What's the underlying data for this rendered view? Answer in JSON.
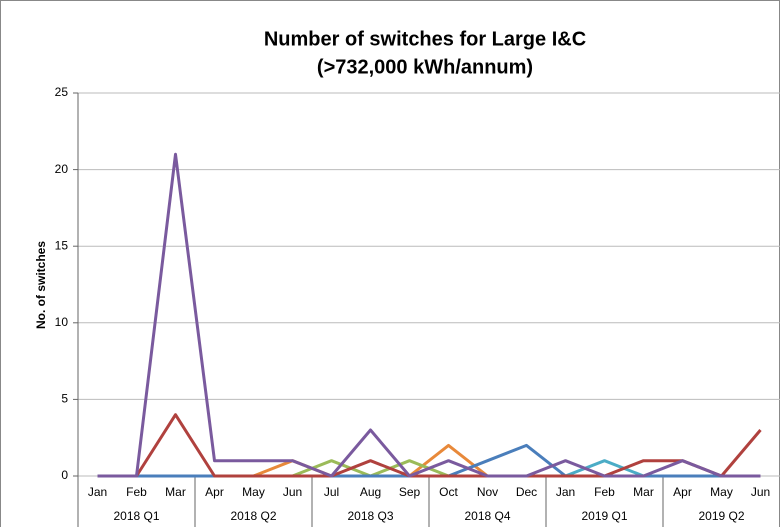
{
  "chart_data": {
    "type": "line",
    "title": [
      "Number of switches for Large I&C",
      "(>732,000 kWh/annum)"
    ],
    "y_label": "No. of switches",
    "categories": [
      "Jan",
      "Feb",
      "Mar",
      "Apr",
      "May",
      "Jun",
      "Jul",
      "Aug",
      "Sep",
      "Oct",
      "Nov",
      "Dec",
      "Jan",
      "Feb",
      "Mar",
      "Apr",
      "May",
      "Jun"
    ],
    "category_groups": [
      "2018 Q1",
      "2018 Q2",
      "2018 Q3",
      "2018 Q4",
      "2019 Q1",
      "2019 Q2"
    ],
    "series": [
      {
        "color": "#e8893a",
        "values": [
          0,
          0,
          0,
          0,
          0,
          1,
          0,
          0,
          0,
          2,
          0,
          0,
          0,
          0,
          0,
          0,
          0,
          0
        ]
      },
      {
        "color": "#9bbb59",
        "values": [
          0,
          0,
          0,
          0,
          0,
          0,
          1,
          0,
          1,
          0,
          0,
          0,
          0,
          0,
          0,
          0,
          0,
          0
        ]
      },
      {
        "color": "#4bacc6",
        "values": [
          0,
          0,
          0,
          0,
          0,
          0,
          0,
          0,
          0,
          0,
          0,
          0,
          0,
          1,
          0,
          0,
          0,
          0
        ]
      },
      {
        "color": "#4a7ebb",
        "values": [
          0,
          0,
          0,
          0,
          0,
          0,
          0,
          0,
          0,
          0,
          1,
          2,
          0,
          0,
          0,
          0,
          0,
          0
        ]
      },
      {
        "color": "#b0413e",
        "values": [
          0,
          0,
          4,
          0,
          0,
          0,
          0,
          1,
          0,
          0,
          0,
          0,
          0,
          0,
          1,
          1,
          0,
          3
        ]
      },
      {
        "color": "#7a5a9e",
        "values": [
          0,
          0,
          21,
          1,
          1,
          1,
          0,
          3,
          0,
          1,
          0,
          0,
          1,
          0,
          0,
          1,
          0,
          0
        ]
      }
    ],
    "ylim": [
      0,
      25
    ],
    "yticks": [
      0,
      5,
      10,
      15,
      20,
      25
    ],
    "grid": true
  }
}
